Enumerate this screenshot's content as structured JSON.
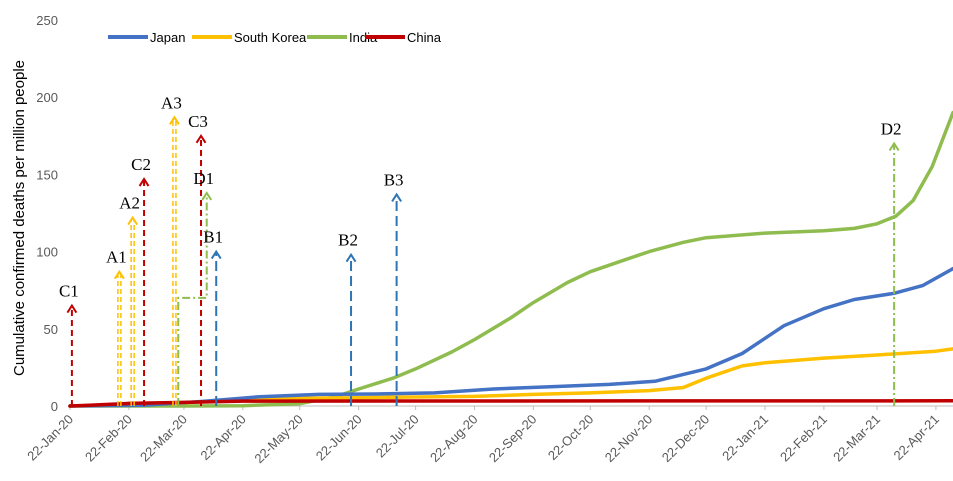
{
  "chart_data": {
    "type": "line",
    "title": "",
    "xlabel": "",
    "ylabel": "Cumulative confirmed deaths per million people",
    "ylim": [
      0,
      250
    ],
    "y_ticks": [
      "0",
      "50",
      "100",
      "150",
      "200",
      "250"
    ],
    "x_ticks": [
      "22-Jan-20",
      "22-Feb-20",
      "22-Mar-20",
      "22-Apr-20",
      "22-May-20",
      "22-Jun-20",
      "22-Jul-20",
      "22-Aug-20",
      "22-Sep-20",
      "22-Oct-20",
      "22-Nov-20",
      "22-Dec-20",
      "22-Jan-21",
      "22-Feb-21",
      "22-Mar-21",
      "22-Apr-21"
    ],
    "grid": false,
    "legend_position": "top-left",
    "series": [
      {
        "name": "Japan",
        "color": "#4472C4",
        "points": [
          [
            "2020-01-22",
            0
          ],
          [
            "2020-03-01",
            0.5
          ],
          [
            "2020-04-01",
            3
          ],
          [
            "2020-05-01",
            6
          ],
          [
            "2020-06-01",
            7.5
          ],
          [
            "2020-07-01",
            7.8
          ],
          [
            "2020-08-01",
            8.5
          ],
          [
            "2020-09-01",
            11
          ],
          [
            "2020-10-01",
            12.5
          ],
          [
            "2020-11-01",
            14
          ],
          [
            "2020-11-25",
            16
          ],
          [
            "2020-12-22",
            24
          ],
          [
            "2021-01-10",
            34
          ],
          [
            "2021-02-01",
            52
          ],
          [
            "2021-02-22",
            63
          ],
          [
            "2021-03-10",
            69
          ],
          [
            "2021-03-31",
            73
          ],
          [
            "2021-04-15",
            78
          ],
          [
            "2021-05-01",
            89
          ]
        ]
      },
      {
        "name": "South Korea",
        "color": "#FFC000",
        "points": [
          [
            "2020-01-22",
            0
          ],
          [
            "2020-02-22",
            0.5
          ],
          [
            "2020-03-22",
            2
          ],
          [
            "2020-04-22",
            4.5
          ],
          [
            "2020-05-22",
            5
          ],
          [
            "2020-06-22",
            5.4
          ],
          [
            "2020-07-22",
            5.8
          ],
          [
            "2020-08-22",
            6.2
          ],
          [
            "2020-09-22",
            7.5
          ],
          [
            "2020-10-22",
            8.5
          ],
          [
            "2020-11-22",
            10
          ],
          [
            "2020-12-10",
            12
          ],
          [
            "2020-12-22",
            18
          ],
          [
            "2021-01-10",
            26
          ],
          [
            "2021-01-22",
            28
          ],
          [
            "2021-02-22",
            31
          ],
          [
            "2021-03-22",
            33
          ],
          [
            "2021-04-22",
            35.5
          ],
          [
            "2021-05-01",
            37
          ]
        ]
      },
      {
        "name": "India",
        "color": "#8FBC4F",
        "points": [
          [
            "2020-01-22",
            0
          ],
          [
            "2020-03-22",
            0
          ],
          [
            "2020-04-22",
            0.2
          ],
          [
            "2020-05-22",
            1.5
          ],
          [
            "2020-06-10",
            6
          ],
          [
            "2020-06-22",
            11
          ],
          [
            "2020-07-10",
            18
          ],
          [
            "2020-07-22",
            24
          ],
          [
            "2020-08-10",
            35
          ],
          [
            "2020-08-22",
            43
          ],
          [
            "2020-09-10",
            57
          ],
          [
            "2020-09-22",
            67
          ],
          [
            "2020-10-10",
            80
          ],
          [
            "2020-10-22",
            87
          ],
          [
            "2020-11-10",
            95
          ],
          [
            "2020-11-22",
            100
          ],
          [
            "2020-12-10",
            106
          ],
          [
            "2020-12-22",
            109
          ],
          [
            "2021-01-22",
            112
          ],
          [
            "2021-02-22",
            113.5
          ],
          [
            "2021-03-10",
            115
          ],
          [
            "2021-03-22",
            118
          ],
          [
            "2021-04-01",
            123
          ],
          [
            "2021-04-10",
            133
          ],
          [
            "2021-04-20",
            155
          ],
          [
            "2021-05-01",
            190
          ]
        ]
      },
      {
        "name": "China",
        "color": "#C00000",
        "points": [
          [
            "2020-01-22",
            0
          ],
          [
            "2020-02-01",
            0.5
          ],
          [
            "2020-02-22",
            1.7
          ],
          [
            "2020-03-22",
            2.3
          ],
          [
            "2020-04-22",
            3.2
          ],
          [
            "2021-05-01",
            3.4
          ]
        ]
      }
    ],
    "annotations": [
      {
        "label": "C1",
        "date": "2020-01-23",
        "y_top": 65,
        "color": "#C00000",
        "style": "dash"
      },
      {
        "label": "A1",
        "date": "2020-02-17",
        "y_top": 87,
        "color": "#FFC000",
        "style": "dash-double"
      },
      {
        "label": "A2",
        "date": "2020-02-24",
        "y_top": 122,
        "color": "#FFC000",
        "style": "dash-double"
      },
      {
        "label": "C2",
        "date": "2020-03-01",
        "y_top": 147,
        "color": "#C00000",
        "style": "dash"
      },
      {
        "label": "A3",
        "date": "2020-03-17",
        "y_top": 187,
        "color": "#FFC000",
        "style": "dash-double"
      },
      {
        "label": "C3",
        "date": "2020-03-31",
        "y_top": 175,
        "color": "#C00000",
        "style": "dash"
      },
      {
        "label": "D1",
        "date": "2020-04-03",
        "y_top": 138,
        "color": "#8FBC4F",
        "style": "dash-dot",
        "step_from_date": "2020-03-19",
        "step_y": 70
      },
      {
        "label": "B1",
        "date": "2020-04-08",
        "y_top": 100,
        "color": "#2E75B6",
        "style": "long-dash"
      },
      {
        "label": "B2",
        "date": "2020-06-18",
        "y_top": 98,
        "color": "#2E75B6",
        "style": "long-dash"
      },
      {
        "label": "B3",
        "date": "2020-07-12",
        "y_top": 137,
        "color": "#2E75B6",
        "style": "long-dash"
      },
      {
        "label": "D2",
        "date": "2021-03-31",
        "y_top": 170,
        "color": "#8FBC4F",
        "style": "dash-dot"
      }
    ]
  }
}
